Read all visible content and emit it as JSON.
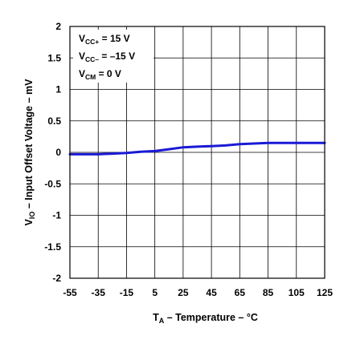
{
  "chart_data": {
    "type": "line",
    "xlabel": {
      "main": "T",
      "sub": "A",
      "rest": " – Temperature – °C"
    },
    "ylabel": {
      "main": "V",
      "sub": "IO",
      "rest": " – Input Offset Voltage – mV"
    },
    "xlim": [
      -55,
      125
    ],
    "ylim": [
      -2,
      2
    ],
    "x_ticks": [
      "-55",
      "-35",
      "-15",
      "5",
      "25",
      "45",
      "65",
      "85",
      "105",
      "125"
    ],
    "y_ticks": [
      "2",
      "1.5",
      "1",
      "0.5",
      "0",
      "-0.5",
      "-1",
      "-1.5",
      "-2"
    ],
    "grid": true,
    "annotations": [
      {
        "pre": "V",
        "sub": "CC+",
        "post": " = 15 V"
      },
      {
        "pre": "V",
        "sub": "CC–",
        "post": " = –15 V"
      },
      {
        "pre": "V",
        "sub": "CM",
        "post": " = 0 V"
      }
    ],
    "series": [
      {
        "color": "#1a1ad6",
        "x": [
          -55,
          -35,
          -25,
          -15,
          -5,
          5,
          15,
          25,
          35,
          45,
          55,
          65,
          75,
          85,
          95,
          105,
          115,
          125
        ],
        "y": [
          -0.03,
          -0.03,
          -0.02,
          -0.01,
          0.01,
          0.02,
          0.05,
          0.08,
          0.09,
          0.1,
          0.11,
          0.13,
          0.14,
          0.15,
          0.15,
          0.15,
          0.15,
          0.15
        ]
      }
    ]
  }
}
